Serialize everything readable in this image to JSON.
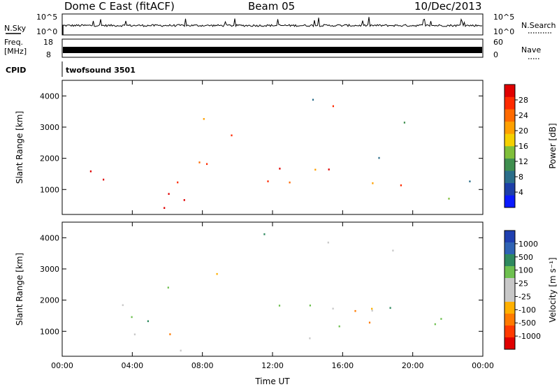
{
  "header": {
    "station": "Dome C East (fitACF)",
    "beam": "Beam 05",
    "date": "10/Dec/2013"
  },
  "strips": {
    "nsky": {
      "label": "N.Sky",
      "ticks": [
        "10^5",
        "10^0"
      ]
    },
    "nsearch": {
      "label": "N.Search"
    },
    "freq": {
      "label_line1": "Freq.",
      "label_line2": "[MHz]",
      "ticks": [
        "18",
        "8"
      ]
    },
    "nave": {
      "label": "Nave",
      "ticks": [
        "60",
        "0"
      ]
    },
    "cpid": {
      "label": "CPID",
      "value": "twofsound 3501"
    }
  },
  "chart_data": [
    {
      "type": "heatmap",
      "name": "power",
      "xlabel": "Time UT",
      "ylabel": "Slant Range [km]",
      "xlim_hours": [
        0,
        24
      ],
      "ylim_km": [
        200,
        4500
      ],
      "xticks": [
        "00:00",
        "04:00",
        "08:00",
        "12:00",
        "16:00",
        "20:00",
        "00:00"
      ],
      "yticks": [
        1000,
        2000,
        3000,
        4000
      ],
      "colorbar": {
        "label": "Power [dB]",
        "ticks": [
          "4",
          "8",
          "12",
          "16",
          "20",
          "24",
          "28"
        ],
        "colors": [
          "#0a1aff",
          "#1d3fa8",
          "#2b6e8a",
          "#3f8f4f",
          "#7fbf3a",
          "#f5d000",
          "#ffa000",
          "#ff6a00",
          "#ff2a00",
          "#e00000"
        ]
      }
    },
    {
      "type": "heatmap",
      "name": "velocity",
      "xlabel": "Time UT",
      "ylabel": "Slant Range [km]",
      "xlim_hours": [
        0,
        24
      ],
      "ylim_km": [
        200,
        4500
      ],
      "xticks": [
        "00:00",
        "04:00",
        "08:00",
        "12:00",
        "16:00",
        "20:00",
        "00:00"
      ],
      "yticks": [
        1000,
        2000,
        3000,
        4000
      ],
      "colorbar": {
        "label": "Velocity [m s⁻¹]",
        "ticks": [
          "1000",
          "500",
          "100",
          "25",
          "-25",
          "-100",
          "-500",
          "-1000"
        ],
        "colors": [
          "#1f3fb0",
          "#2f63b4",
          "#2f8a5f",
          "#6ec050",
          "#c8c8c8",
          "#c8c8c8",
          "#ffb000",
          "#ff7a00",
          "#ff3a00",
          "#e00000"
        ]
      }
    }
  ],
  "colors": {
    "ground_scatter": "#c8c8c8",
    "band_warm": "#ff5a00"
  }
}
